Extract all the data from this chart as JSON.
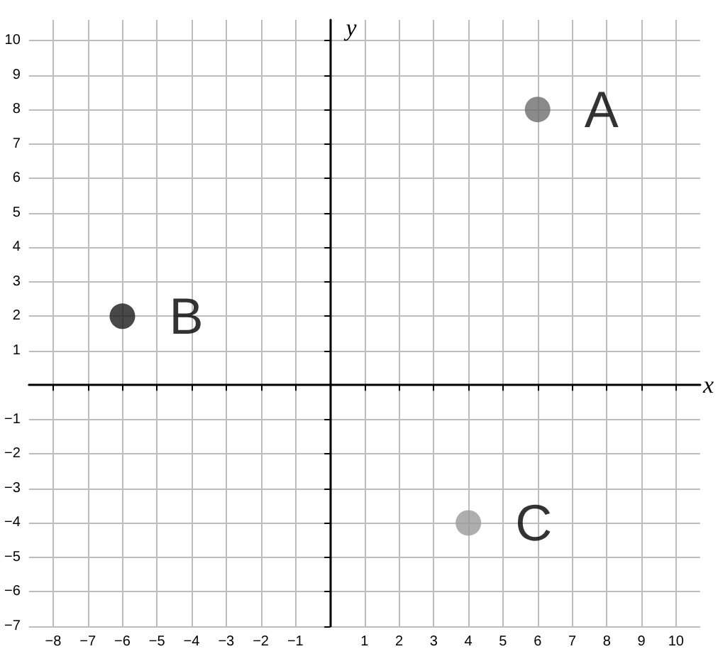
{
  "chart_data": {
    "type": "scatter",
    "xlabel": "x",
    "ylabel": "y",
    "xlim": [
      -8.7,
      10.7
    ],
    "ylim": [
      -7,
      10.6
    ],
    "xticks": [
      {
        "value": -8,
        "label": "−8"
      },
      {
        "value": -7,
        "label": "−7"
      },
      {
        "value": -6,
        "label": "−6"
      },
      {
        "value": -5,
        "label": "−5"
      },
      {
        "value": -4,
        "label": "−4"
      },
      {
        "value": -3,
        "label": "−3"
      },
      {
        "value": -2,
        "label": "−2"
      },
      {
        "value": -1,
        "label": "−1"
      },
      1,
      2,
      3,
      4,
      5,
      6,
      7,
      8,
      9,
      10
    ],
    "yticks": [
      {
        "value": -7,
        "label": "−7"
      },
      {
        "value": -6,
        "label": "−6"
      },
      {
        "value": -5,
        "label": "−5"
      },
      {
        "value": -4,
        "label": "−4"
      },
      {
        "value": -3,
        "label": "−3"
      },
      {
        "value": -2,
        "label": "−2"
      },
      {
        "value": -1,
        "label": "−1"
      },
      1,
      2,
      3,
      4,
      5,
      6,
      7,
      8,
      9,
      10
    ],
    "series": [
      {
        "name": "A",
        "color": "#6d6d6d",
        "x": [
          6
        ],
        "values": [
          8
        ]
      },
      {
        "name": "B",
        "color": "#1a1a1a",
        "x": [
          -6
        ],
        "values": [
          2
        ]
      },
      {
        "name": "C",
        "color": "#9a9a9a",
        "x": [
          4
        ],
        "values": [
          -4
        ]
      }
    ],
    "marker": "circle",
    "grid": true,
    "legend": false
  }
}
